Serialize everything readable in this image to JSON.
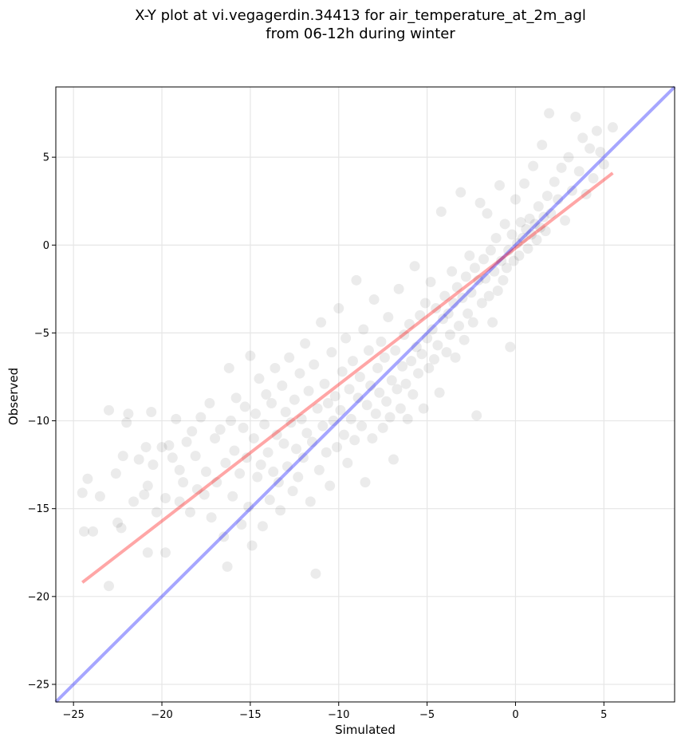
{
  "chart_data": {
    "type": "scatter",
    "title": "X-Y plot at vi.vegagerdin.34413 for air_temperature_at_2m_agl",
    "subtitle": "from 06-12h during winter",
    "xlabel": "Simulated",
    "ylabel": "Observed",
    "xlim": [
      -26,
      9
    ],
    "ylim": [
      -26,
      9
    ],
    "xticks": [
      -25,
      -20,
      -15,
      -10,
      -5,
      0,
      5
    ],
    "yticks": [
      -25,
      -20,
      -15,
      -10,
      -5,
      0,
      5
    ],
    "grid": true,
    "legend": "none",
    "point_color": "#000000",
    "point_opacity": 0.08,
    "identity_line": {
      "x": [
        -26,
        9
      ],
      "y": [
        -26,
        9
      ],
      "color": "#0000ff"
    },
    "fit_line": {
      "x": [
        -24.5,
        5.5
      ],
      "y": [
        -19.2,
        4.1
      ],
      "color": "#ff0000"
    },
    "points": [
      [
        -24.5,
        -14.1
      ],
      [
        -24.4,
        -16.3
      ],
      [
        -24.2,
        -13.3
      ],
      [
        -23.9,
        -16.3
      ],
      [
        -23.5,
        -14.3
      ],
      [
        -23.0,
        -19.4
      ],
      [
        -23.0,
        -9.4
      ],
      [
        -22.6,
        -13.0
      ],
      [
        -22.5,
        -15.8
      ],
      [
        -22.3,
        -16.1
      ],
      [
        -22.2,
        -12.0
      ],
      [
        -22.0,
        -10.1
      ],
      [
        -21.9,
        -9.6
      ],
      [
        -21.6,
        -14.6
      ],
      [
        -21.3,
        -12.2
      ],
      [
        -21.0,
        -14.2
      ],
      [
        -20.9,
        -11.5
      ],
      [
        -20.8,
        -17.5
      ],
      [
        -20.8,
        -13.7
      ],
      [
        -20.6,
        -9.5
      ],
      [
        -20.5,
        -12.5
      ],
      [
        -20.3,
        -15.2
      ],
      [
        -20.0,
        -11.5
      ],
      [
        -19.8,
        -17.5
      ],
      [
        -19.8,
        -14.4
      ],
      [
        -19.6,
        -11.4
      ],
      [
        -19.4,
        -12.1
      ],
      [
        -19.2,
        -9.9
      ],
      [
        -19.0,
        -14.6
      ],
      [
        -19.0,
        -12.8
      ],
      [
        -18.8,
        -13.5
      ],
      [
        -18.6,
        -11.2
      ],
      [
        -18.4,
        -15.2
      ],
      [
        -18.3,
        -10.6
      ],
      [
        -18.1,
        -12.0
      ],
      [
        -18.0,
        -13.9
      ],
      [
        -17.8,
        -9.8
      ],
      [
        -17.6,
        -14.2
      ],
      [
        -17.5,
        -12.9
      ],
      [
        -17.3,
        -9.0
      ],
      [
        -17.2,
        -15.5
      ],
      [
        -17.0,
        -11.0
      ],
      [
        -16.9,
        -13.5
      ],
      [
        -16.7,
        -10.5
      ],
      [
        -16.5,
        -16.6
      ],
      [
        -16.4,
        -12.4
      ],
      [
        -16.3,
        -18.3
      ],
      [
        -16.2,
        -7.0
      ],
      [
        -16.1,
        -10.0
      ],
      [
        -16.0,
        -14.3
      ],
      [
        -15.9,
        -11.7
      ],
      [
        -15.8,
        -8.7
      ],
      [
        -15.6,
        -13.0
      ],
      [
        -15.5,
        -15.9
      ],
      [
        -15.4,
        -10.4
      ],
      [
        -15.3,
        -9.2
      ],
      [
        -15.2,
        -12.1
      ],
      [
        -15.1,
        -14.9
      ],
      [
        -15.0,
        -6.3
      ],
      [
        -14.9,
        -17.1
      ],
      [
        -14.8,
        -11.0
      ],
      [
        -14.7,
        -9.6
      ],
      [
        -14.6,
        -13.2
      ],
      [
        -14.5,
        -7.6
      ],
      [
        -14.4,
        -12.5
      ],
      [
        -14.3,
        -16.0
      ],
      [
        -14.2,
        -10.2
      ],
      [
        -14.1,
        -8.5
      ],
      [
        -14.0,
        -11.8
      ],
      [
        -13.9,
        -14.5
      ],
      [
        -13.8,
        -9.0
      ],
      [
        -13.7,
        -12.9
      ],
      [
        -13.6,
        -7.0
      ],
      [
        -13.5,
        -10.8
      ],
      [
        -13.4,
        -13.5
      ],
      [
        -13.3,
        -15.1
      ],
      [
        -13.2,
        -8.0
      ],
      [
        -13.1,
        -11.3
      ],
      [
        -13.0,
        -9.5
      ],
      [
        -12.9,
        -12.6
      ],
      [
        -12.8,
        -6.4
      ],
      [
        -12.7,
        -10.1
      ],
      [
        -12.6,
        -14.0
      ],
      [
        -12.5,
        -8.8
      ],
      [
        -12.4,
        -11.6
      ],
      [
        -12.3,
        -13.2
      ],
      [
        -12.2,
        -7.3
      ],
      [
        -12.1,
        -9.9
      ],
      [
        -12.0,
        -12.1
      ],
      [
        -11.9,
        -5.6
      ],
      [
        -11.8,
        -10.7
      ],
      [
        -11.7,
        -8.3
      ],
      [
        -11.6,
        -14.6
      ],
      [
        -11.5,
        -11.2
      ],
      [
        -11.4,
        -6.8
      ],
      [
        -11.3,
        -18.7
      ],
      [
        -11.2,
        -9.3
      ],
      [
        -11.1,
        -12.8
      ],
      [
        -11.0,
        -4.4
      ],
      [
        -10.9,
        -10.3
      ],
      [
        -10.8,
        -7.9
      ],
      [
        -10.7,
        -11.8
      ],
      [
        -10.6,
        -9.0
      ],
      [
        -10.5,
        -13.7
      ],
      [
        -10.4,
        -6.1
      ],
      [
        -10.3,
        -10.0
      ],
      [
        -10.2,
        -8.6
      ],
      [
        -10.1,
        -11.5
      ],
      [
        -10.0,
        -3.6
      ],
      [
        -9.9,
        -9.4
      ],
      [
        -9.8,
        -7.2
      ],
      [
        -9.7,
        -10.8
      ],
      [
        -9.6,
        -5.3
      ],
      [
        -9.5,
        -12.4
      ],
      [
        -9.4,
        -8.2
      ],
      [
        -9.3,
        -9.9
      ],
      [
        -9.2,
        -6.6
      ],
      [
        -9.1,
        -11.1
      ],
      [
        -9.0,
        -2.0
      ],
      [
        -8.9,
        -8.7
      ],
      [
        -8.8,
        -7.5
      ],
      [
        -8.7,
        -10.3
      ],
      [
        -8.6,
        -4.8
      ],
      [
        -8.5,
        -13.5
      ],
      [
        -8.4,
        -9.1
      ],
      [
        -8.3,
        -6.0
      ],
      [
        -8.2,
        -8.0
      ],
      [
        -8.1,
        -11.0
      ],
      [
        -8.0,
        -3.1
      ],
      [
        -7.9,
        -9.6
      ],
      [
        -7.8,
        -7.0
      ],
      [
        -7.7,
        -8.4
      ],
      [
        -7.6,
        -5.5
      ],
      [
        -7.5,
        -10.4
      ],
      [
        -7.4,
        -6.4
      ],
      [
        -7.3,
        -8.9
      ],
      [
        -7.2,
        -4.1
      ],
      [
        -7.1,
        -9.8
      ],
      [
        -7.0,
        -7.7
      ],
      [
        -6.9,
        -12.2
      ],
      [
        -6.8,
        -6.0
      ],
      [
        -6.7,
        -8.2
      ],
      [
        -6.6,
        -2.5
      ],
      [
        -6.5,
        -9.3
      ],
      [
        -6.4,
        -6.9
      ],
      [
        -6.3,
        -5.1
      ],
      [
        -6.2,
        -7.9
      ],
      [
        -6.1,
        -9.9
      ],
      [
        -6.0,
        -4.5
      ],
      [
        -5.9,
        -6.6
      ],
      [
        -5.8,
        -8.5
      ],
      [
        -5.7,
        -1.2
      ],
      [
        -5.6,
        -5.8
      ],
      [
        -5.5,
        -7.3
      ],
      [
        -5.4,
        -4.0
      ],
      [
        -5.3,
        -6.2
      ],
      [
        -5.2,
        -9.3
      ],
      [
        -5.1,
        -3.3
      ],
      [
        -5.0,
        -5.3
      ],
      [
        -4.9,
        -7.0
      ],
      [
        -4.8,
        -2.1
      ],
      [
        -4.7,
        -4.8
      ],
      [
        -4.6,
        -6.5
      ],
      [
        -4.5,
        -3.6
      ],
      [
        -4.4,
        -5.7
      ],
      [
        -4.3,
        -8.4
      ],
      [
        -4.2,
        1.9
      ],
      [
        -4.1,
        -4.2
      ],
      [
        -4.0,
        -2.9
      ],
      [
        -3.9,
        -6.1
      ],
      [
        -3.8,
        -3.9
      ],
      [
        -3.7,
        -5.1
      ],
      [
        -3.6,
        -1.5
      ],
      [
        -3.5,
        -3.3
      ],
      [
        -3.4,
        -6.4
      ],
      [
        -3.3,
        -2.4
      ],
      [
        -3.2,
        -4.6
      ],
      [
        -3.1,
        3.0
      ],
      [
        -3.0,
        -3.0
      ],
      [
        -2.9,
        -5.4
      ],
      [
        -2.8,
        -1.8
      ],
      [
        -2.7,
        -3.9
      ],
      [
        -2.6,
        -0.6
      ],
      [
        -2.5,
        -2.7
      ],
      [
        -2.4,
        -4.4
      ],
      [
        -2.3,
        -1.3
      ],
      [
        -2.2,
        -9.7
      ],
      [
        -2.1,
        -2.0
      ],
      [
        -2.0,
        2.4
      ],
      [
        -1.9,
        -3.3
      ],
      [
        -1.8,
        -0.8
      ],
      [
        -1.7,
        -1.9
      ],
      [
        -1.6,
        1.8
      ],
      [
        -1.5,
        -2.9
      ],
      [
        -1.4,
        -0.3
      ],
      [
        -1.3,
        -4.4
      ],
      [
        -1.2,
        -1.5
      ],
      [
        -1.1,
        0.4
      ],
      [
        -1.0,
        -2.6
      ],
      [
        -0.9,
        3.4
      ],
      [
        -0.8,
        -0.9
      ],
      [
        -0.7,
        -2.0
      ],
      [
        -0.6,
        1.2
      ],
      [
        -0.5,
        -1.3
      ],
      [
        -0.4,
        -0.3
      ],
      [
        -0.3,
        -5.8
      ],
      [
        -0.2,
        0.6
      ],
      [
        -0.1,
        -0.9
      ],
      [
        0.0,
        2.6
      ],
      [
        0.1,
        0.1
      ],
      [
        0.2,
        -0.6
      ],
      [
        0.3,
        1.3
      ],
      [
        0.4,
        0.4
      ],
      [
        0.5,
        3.5
      ],
      [
        0.6,
        0.9
      ],
      [
        0.7,
        -0.2
      ],
      [
        0.8,
        1.5
      ],
      [
        0.9,
        0.6
      ],
      [
        1.0,
        4.5
      ],
      [
        1.1,
        1.2
      ],
      [
        1.2,
        0.3
      ],
      [
        1.3,
        2.2
      ],
      [
        1.4,
        1.0
      ],
      [
        1.5,
        5.7
      ],
      [
        1.6,
        1.6
      ],
      [
        1.7,
        0.8
      ],
      [
        1.8,
        2.8
      ],
      [
        1.9,
        7.5
      ],
      [
        2.0,
        1.8
      ],
      [
        2.2,
        3.6
      ],
      [
        2.4,
        2.6
      ],
      [
        2.6,
        4.4
      ],
      [
        2.8,
        1.4
      ],
      [
        3.0,
        5.0
      ],
      [
        3.2,
        3.1
      ],
      [
        3.4,
        7.3
      ],
      [
        3.6,
        4.2
      ],
      [
        3.8,
        6.1
      ],
      [
        4.0,
        2.9
      ],
      [
        4.2,
        5.5
      ],
      [
        4.4,
        3.8
      ],
      [
        4.6,
        6.5
      ],
      [
        4.8,
        5.3
      ],
      [
        5.0,
        4.6
      ],
      [
        5.5,
        6.7
      ]
    ]
  }
}
